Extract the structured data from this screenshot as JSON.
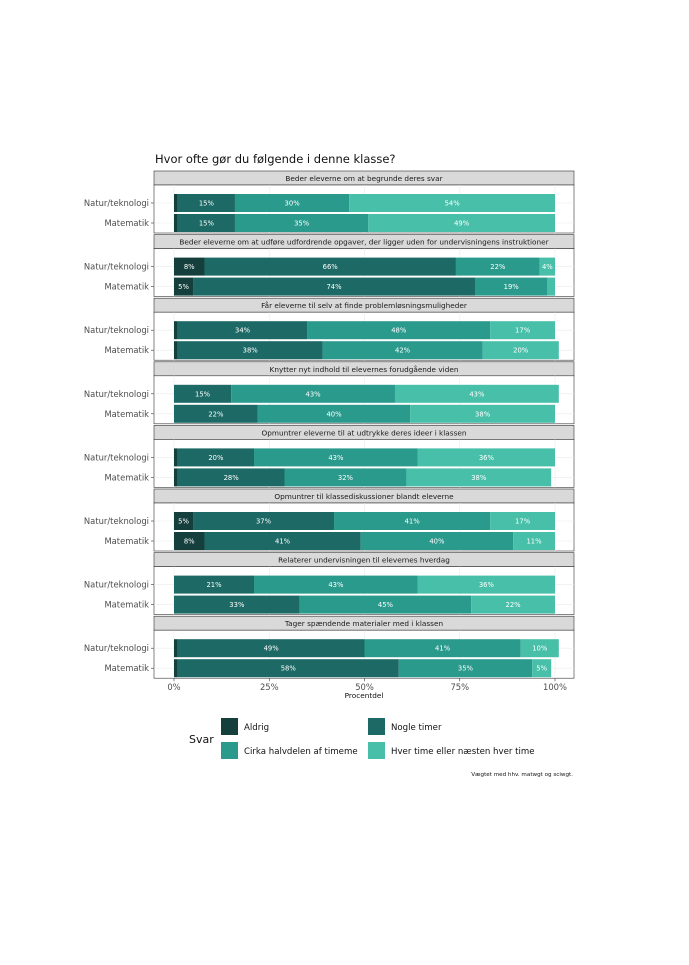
{
  "chart_data": {
    "type": "bar",
    "orientation": "horizontal",
    "stacked": true,
    "title": "Hvor ofte gør du følgende i denne klasse?",
    "xlabel": "Procentdel",
    "xlim": [
      0,
      100
    ],
    "xticks": [
      "0%",
      "25%",
      "50%",
      "75%",
      "100%"
    ],
    "legend_title": "Svar",
    "legend_position": "bottom",
    "caption": "Vægtet med hhv. matwgt og sciwgt.",
    "categories": [
      "Natur/teknologi",
      "Matematik"
    ],
    "series": [
      {
        "name": "Aldrig",
        "color": "#153f3c"
      },
      {
        "name": "Nogle timer",
        "color": "#1c6965"
      },
      {
        "name": "Cirka halvdelen af timeme",
        "color": "#2a9a8d"
      },
      {
        "name": "Hver time eller næsten hver time",
        "color": "#47bfa9"
      }
    ],
    "panels": [
      {
        "strip": "Beder eleverne om at begrunde deres svar",
        "rows": [
          {
            "category": "Natur/teknologi",
            "values": [
              1,
              15,
              30,
              54
            ],
            "labels": [
              "",
              "15%",
              "30%",
              "54%"
            ]
          },
          {
            "category": "Matematik",
            "values": [
              1,
              15,
              35,
              49
            ],
            "labels": [
              "",
              "15%",
              "35%",
              "49%"
            ]
          }
        ]
      },
      {
        "strip": "Beder eleverne om at udføre udfordrende opgaver, der ligger uden for undervisningens instruktioner",
        "rows": [
          {
            "category": "Natur/teknologi",
            "values": [
              8,
              66,
              22,
              4
            ],
            "labels": [
              "8%",
              "66%",
              "22%",
              "4%"
            ]
          },
          {
            "category": "Matematik",
            "values": [
              5,
              74,
              19,
              2
            ],
            "labels": [
              "5%",
              "74%",
              "19%",
              ""
            ]
          }
        ]
      },
      {
        "strip": "Får eleverne til selv at finde problemløsningsmuligheder",
        "rows": [
          {
            "category": "Natur/teknologi",
            "values": [
              1,
              34,
              48,
              17
            ],
            "labels": [
              "",
              "34%",
              "48%",
              "17%"
            ]
          },
          {
            "category": "Matematik",
            "values": [
              1,
              38,
              42,
              20
            ],
            "labels": [
              "",
              "38%",
              "42%",
              "20%"
            ]
          }
        ]
      },
      {
        "strip": "Knytter nyt indhold til elevernes forudgående viden",
        "rows": [
          {
            "category": "Natur/teknologi",
            "values": [
              0,
              15,
              43,
              43
            ],
            "labels": [
              "",
              "15%",
              "43%",
              "43%"
            ]
          },
          {
            "category": "Matematik",
            "values": [
              0,
              22,
              40,
              38
            ],
            "labels": [
              "",
              "22%",
              "40%",
              "38%"
            ]
          }
        ]
      },
      {
        "strip": "Opmuntrer eleverne til at udtrykke deres ideer i klassen",
        "rows": [
          {
            "category": "Natur/teknologi",
            "values": [
              1,
              20,
              43,
              36
            ],
            "labels": [
              "",
              "20%",
              "43%",
              "36%"
            ]
          },
          {
            "category": "Matematik",
            "values": [
              1,
              28,
              32,
              38
            ],
            "labels": [
              "",
              "28%",
              "32%",
              "38%"
            ]
          }
        ]
      },
      {
        "strip": "Opmuntrer til klassediskussioner blandt eleverne",
        "rows": [
          {
            "category": "Natur/teknologi",
            "values": [
              5,
              37,
              41,
              17
            ],
            "labels": [
              "5%",
              "37%",
              "41%",
              "17%"
            ]
          },
          {
            "category": "Matematik",
            "values": [
              8,
              41,
              40,
              11
            ],
            "labels": [
              "8%",
              "41%",
              "40%",
              "11%"
            ]
          }
        ]
      },
      {
        "strip": "Relaterer undervisningen til elevernes hverdag",
        "rows": [
          {
            "category": "Natur/teknologi",
            "values": [
              0,
              21,
              43,
              36
            ],
            "labels": [
              "",
              "21%",
              "43%",
              "36%"
            ]
          },
          {
            "category": "Matematik",
            "values": [
              0,
              33,
              45,
              22
            ],
            "labels": [
              "",
              "33%",
              "45%",
              "22%"
            ]
          }
        ]
      },
      {
        "strip": "Tager spændende materialer med i klassen",
        "rows": [
          {
            "category": "Natur/teknologi",
            "values": [
              1,
              49,
              41,
              10
            ],
            "labels": [
              "",
              "49%",
              "41%",
              "10%"
            ]
          },
          {
            "category": "Matematik",
            "values": [
              1,
              58,
              35,
              5
            ],
            "labels": [
              "",
              "58%",
              "35%",
              "5%"
            ]
          }
        ]
      }
    ]
  }
}
